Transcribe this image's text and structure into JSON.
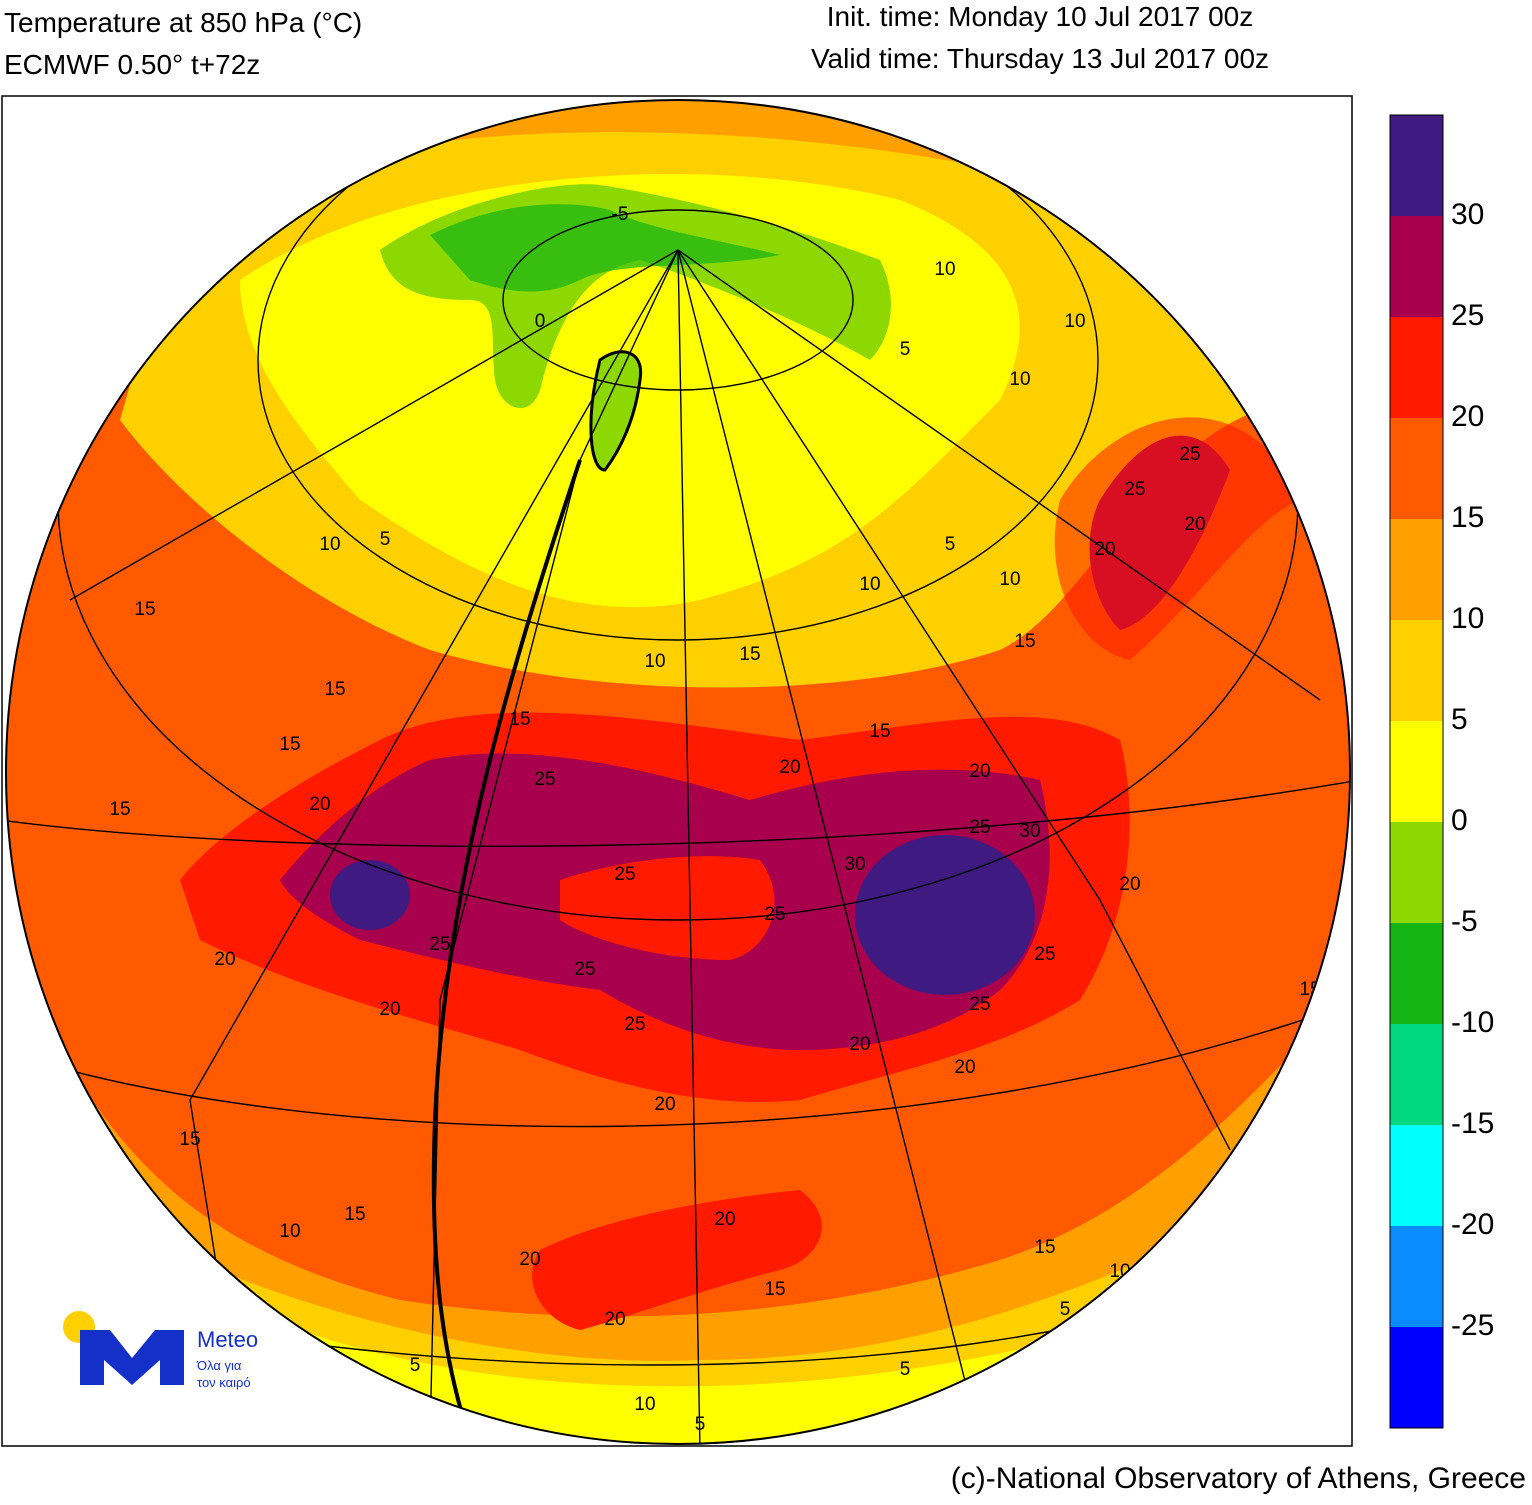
{
  "header": {
    "title": "Temperature at 850 hPa (°C)",
    "subtitle": "ECMWF 0.50° t+72z",
    "init": "Init. time: Monday 10 Jul 2017 00z",
    "valid": "Valid time: Thursday 13 Jul 2017 00z"
  },
  "colorbar": {
    "colors": [
      "#3f1a80",
      "#a8004c",
      "#ff1a00",
      "#ff5a00",
      "#ffa000",
      "#ffd000",
      "#ffff00",
      "#8cd800",
      "#14b414",
      "#00d77f",
      "#00ffff",
      "#0a8cff",
      "#0000ff"
    ],
    "labels": [
      30,
      25,
      20,
      15,
      10,
      5,
      0,
      -5,
      -10,
      -15,
      -20,
      -25
    ]
  },
  "contour_labels": [
    10,
    5,
    15,
    15,
    15,
    15,
    20,
    25,
    25,
    25,
    25,
    25,
    25,
    20,
    20,
    20,
    20,
    20,
    20,
    20,
    15,
    15,
    10,
    15,
    15,
    10,
    5,
    5,
    5,
    10,
    5,
    25,
    30,
    30,
    -5,
    0,
    5,
    10,
    10,
    10,
    10,
    5,
    10,
    25,
    25,
    20,
    20,
    20,
    25,
    25,
    20,
    15,
    10,
    15,
    20,
    20,
    15,
    15,
    15
  ],
  "logo": {
    "name": "Meteo",
    "tagline1": "Όλα για",
    "tagline2": "τον καιρό"
  },
  "credit": "(c)-National Observatory of Athens, Greece"
}
